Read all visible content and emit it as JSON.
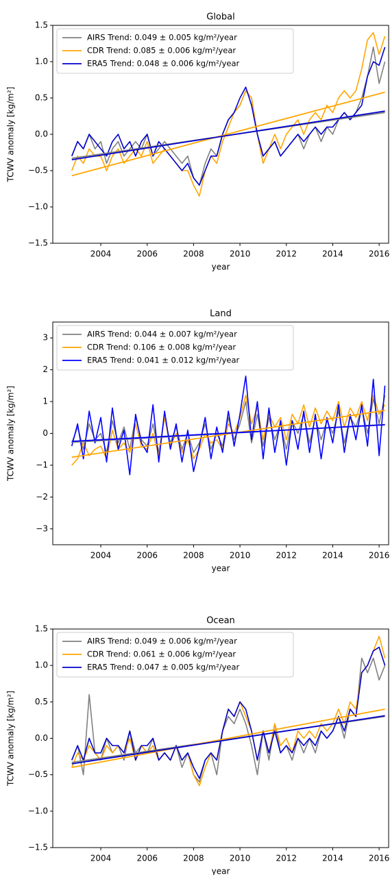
{
  "chart_data": [
    {
      "type": "line",
      "title": "Global",
      "x_label": "year",
      "y_label": "TCWV anomaly [kg/m²]",
      "legend": "upper left",
      "x": [
        2002.75,
        2003,
        2003.25,
        2003.5,
        2003.75,
        2004,
        2004.25,
        2004.5,
        2004.75,
        2005,
        2005.25,
        2005.5,
        2005.75,
        2006,
        2006.25,
        2006.5,
        2006.75,
        2007,
        2007.25,
        2007.5,
        2007.75,
        2008,
        2008.25,
        2008.5,
        2008.75,
        2009,
        2009.25,
        2009.5,
        2009.75,
        2010,
        2010.25,
        2010.5,
        2010.75,
        2011,
        2011.25,
        2011.5,
        2011.75,
        2012,
        2012.25,
        2012.5,
        2012.75,
        2013,
        2013.25,
        2013.5,
        2013.75,
        2014,
        2014.25,
        2014.5,
        2014.75,
        2015,
        2015.25,
        2015.5,
        2015.75,
        2016,
        2016.25
      ],
      "xlim": [
        2001.93,
        2016.41
      ],
      "xticks": [
        2004,
        2006,
        2008,
        2010,
        2012,
        2014,
        2016
      ],
      "ylim": [
        -1.5,
        1.5
      ],
      "yticks": [
        {
          "value": -1.5,
          "label": "−1.5"
        },
        {
          "value": -1.0,
          "label": "−1.0"
        },
        {
          "value": -0.5,
          "label": "−0.5"
        },
        {
          "value": 0,
          "label": "0.0"
        },
        0.5,
        {
          "value": 1.0,
          "label": "1.0"
        },
        1.5
      ],
      "series": [
        {
          "name": "AIRS Trend: 0.049 ± 0.005 kg/m²/year",
          "color": "#808080",
          "trend": [
            -0.33,
            0.3
          ],
          "values": [
            -0.3,
            -0.1,
            -0.2,
            0.0,
            -0.2,
            -0.1,
            -0.4,
            -0.2,
            -0.1,
            -0.3,
            -0.2,
            -0.1,
            -0.2,
            0.0,
            -0.3,
            -0.2,
            -0.1,
            -0.2,
            -0.3,
            -0.4,
            -0.3,
            -0.6,
            -0.7,
            -0.4,
            -0.2,
            -0.3,
            0.0,
            0.2,
            0.3,
            0.4,
            0.6,
            0.5,
            0.0,
            -0.3,
            -0.2,
            -0.1,
            -0.3,
            -0.2,
            -0.1,
            0.0,
            -0.2,
            0.0,
            0.1,
            -0.1,
            0.1,
            0.0,
            0.2,
            0.3,
            0.2,
            0.3,
            0.5,
            0.8,
            1.2,
            0.7,
            1.0
          ]
        },
        {
          "name": "CDR Trend: 0.085 ± 0.006 kg/m²/year",
          "color": "#ffa500",
          "trend": [
            -0.57,
            0.58
          ],
          "values": [
            -0.5,
            -0.3,
            -0.4,
            -0.2,
            -0.3,
            -0.3,
            -0.5,
            -0.3,
            -0.2,
            -0.4,
            -0.3,
            -0.2,
            -0.3,
            -0.1,
            -0.4,
            -0.3,
            -0.2,
            -0.3,
            -0.4,
            -0.5,
            -0.5,
            -0.7,
            -0.85,
            -0.5,
            -0.3,
            -0.4,
            -0.1,
            0.1,
            0.3,
            0.4,
            0.6,
            0.5,
            0.0,
            -0.4,
            -0.2,
            0.0,
            -0.2,
            0.0,
            0.1,
            0.2,
            0.0,
            0.2,
            0.3,
            0.2,
            0.4,
            0.3,
            0.5,
            0.6,
            0.5,
            0.6,
            0.9,
            1.3,
            1.4,
            1.1,
            1.35
          ]
        },
        {
          "name": "ERA5 Trend: 0.048 ± 0.006 kg/m²/year",
          "color": "#0000cd",
          "trend": [
            -0.35,
            0.32
          ],
          "values": [
            -0.3,
            -0.1,
            -0.2,
            0.0,
            -0.1,
            -0.2,
            -0.3,
            -0.1,
            0.0,
            -0.2,
            -0.1,
            -0.3,
            -0.1,
            0.0,
            -0.3,
            -0.1,
            -0.2,
            -0.3,
            -0.4,
            -0.5,
            -0.4,
            -0.6,
            -0.7,
            -0.5,
            -0.3,
            -0.3,
            0.0,
            0.2,
            0.3,
            0.5,
            0.65,
            0.4,
            0.0,
            -0.3,
            -0.2,
            -0.1,
            -0.3,
            -0.2,
            -0.1,
            0.0,
            -0.1,
            0.0,
            0.1,
            0.0,
            0.1,
            0.1,
            0.2,
            0.3,
            0.2,
            0.3,
            0.4,
            0.8,
            1.0,
            0.95,
            1.2
          ]
        }
      ]
    },
    {
      "type": "line",
      "title": "Land",
      "x_label": "year",
      "y_label": "TCWV anomaly [kg/m²]",
      "legend": "upper left",
      "x": [
        2002.75,
        2003,
        2003.25,
        2003.5,
        2003.75,
        2004,
        2004.25,
        2004.5,
        2004.75,
        2005,
        2005.25,
        2005.5,
        2005.75,
        2006,
        2006.25,
        2006.5,
        2006.75,
        2007,
        2007.25,
        2007.5,
        2007.75,
        2008,
        2008.25,
        2008.5,
        2008.75,
        2009,
        2009.25,
        2009.5,
        2009.75,
        2010,
        2010.25,
        2010.5,
        2010.75,
        2011,
        2011.25,
        2011.5,
        2011.75,
        2012,
        2012.25,
        2012.5,
        2012.75,
        2013,
        2013.25,
        2013.5,
        2013.75,
        2014,
        2014.25,
        2014.5,
        2014.75,
        2015,
        2015.25,
        2015.5,
        2015.75,
        2016,
        2016.25
      ],
      "xlim": [
        2001.93,
        2016.41
      ],
      "xticks": [
        2004,
        2006,
        2008,
        2010,
        2012,
        2014,
        2016
      ],
      "ylim": [
        -3.5,
        3.5
      ],
      "yticks": [
        {
          "value": -3,
          "label": "−3"
        },
        {
          "value": -2,
          "label": "−2"
        },
        {
          "value": -1,
          "label": "−1"
        },
        0,
        1,
        2,
        3
      ],
      "series": [
        {
          "name": "AIRS Trend: 0.044 ± 0.007 kg/m²/year",
          "color": "#808080",
          "trend": [
            -0.28,
            0.28
          ],
          "values": [
            -0.3,
            0.2,
            -0.5,
            0.3,
            -0.2,
            0.0,
            -0.6,
            0.4,
            -0.3,
            0.2,
            -0.5,
            0.5,
            -0.2,
            -0.4,
            0.3,
            -0.6,
            0.5,
            -0.3,
            0.2,
            -0.5,
            0.0,
            -0.6,
            -0.3,
            0.3,
            -0.5,
            0.0,
            -0.4,
            0.5,
            -0.2,
            0.3,
            1.0,
            -0.3,
            0.6,
            -0.4,
            0.5,
            -0.2,
            0.3,
            -0.5,
            0.4,
            0.0,
            0.6,
            -0.3,
            0.5,
            -0.2,
            0.4,
            0.0,
            0.7,
            -0.3,
            0.5,
            0.2,
            0.8,
            0.0,
            1.1,
            0.3,
            1.2
          ]
        },
        {
          "name": "CDR Trend: 0.106 ± 0.008 kg/m²/year",
          "color": "#ffa500",
          "trend": [
            -0.75,
            0.72
          ],
          "values": [
            -1.0,
            -0.8,
            -0.3,
            -0.7,
            -0.5,
            -0.4,
            -0.8,
            0.1,
            -0.5,
            -0.3,
            -0.6,
            0.3,
            -0.4,
            -0.5,
            0.0,
            -0.7,
            0.5,
            -0.4,
            0.0,
            -0.6,
            -0.2,
            -0.8,
            -0.5,
            0.0,
            -0.3,
            -0.2,
            -0.5,
            0.3,
            0.0,
            0.5,
            1.2,
            0.3,
            0.8,
            -0.2,
            0.6,
            0.2,
            0.5,
            -0.2,
            0.6,
            0.3,
            0.9,
            0.2,
            0.8,
            0.3,
            0.7,
            0.4,
            1.0,
            0.2,
            0.8,
            0.5,
            1.0,
            0.4,
            1.2,
            0.6,
            0.9
          ]
        },
        {
          "name": "ERA5 Trend: 0.041 ± 0.012 kg/m²/year",
          "color": "#0000ff",
          "trend": [
            -0.25,
            0.27
          ],
          "values": [
            -0.4,
            0.3,
            -0.8,
            0.7,
            -0.3,
            0.5,
            -0.9,
            0.8,
            -0.5,
            0.1,
            -1.3,
            0.6,
            -0.3,
            -0.6,
            0.9,
            -0.9,
            0.7,
            -0.5,
            0.3,
            -0.9,
            0.1,
            -1.2,
            -0.4,
            0.5,
            -0.8,
            0.2,
            -0.6,
            0.7,
            -0.4,
            0.6,
            1.8,
            -0.2,
            1.0,
            -0.8,
            0.8,
            -0.6,
            0.4,
            -1.0,
            0.4,
            -0.5,
            0.7,
            -0.6,
            0.6,
            -0.8,
            0.5,
            -0.3,
            0.9,
            -0.6,
            0.6,
            -0.2,
            0.9,
            -0.4,
            1.7,
            -0.7,
            1.5
          ]
        }
      ]
    },
    {
      "type": "line",
      "title": "Ocean",
      "x_label": "year",
      "y_label": "TCWV anomaly [kg/m²]",
      "legend": "upper left",
      "x": [
        2002.75,
        2003,
        2003.25,
        2003.5,
        2003.75,
        2004,
        2004.25,
        2004.5,
        2004.75,
        2005,
        2005.25,
        2005.5,
        2005.75,
        2006,
        2006.25,
        2006.5,
        2006.75,
        2007,
        2007.25,
        2007.5,
        2007.75,
        2008,
        2008.25,
        2008.5,
        2008.75,
        2009,
        2009.25,
        2009.5,
        2009.75,
        2010,
        2010.25,
        2010.5,
        2010.75,
        2011,
        2011.25,
        2011.5,
        2011.75,
        2012,
        2012.25,
        2012.5,
        2012.75,
        2013,
        2013.25,
        2013.5,
        2013.75,
        2014,
        2014.25,
        2014.5,
        2014.75,
        2015,
        2015.25,
        2015.5,
        2015.75,
        2016,
        2016.25
      ],
      "xlim": [
        2001.93,
        2016.41
      ],
      "xticks": [
        2004,
        2006,
        2008,
        2010,
        2012,
        2014,
        2016
      ],
      "ylim": [
        -1.5,
        1.5
      ],
      "yticks": [
        {
          "value": -1.5,
          "label": "−1.5"
        },
        {
          "value": -1.0,
          "label": "−1.0"
        },
        {
          "value": -0.5,
          "label": "−0.5"
        },
        {
          "value": 0,
          "label": "0.0"
        },
        0.5,
        {
          "value": 1.0,
          "label": "1.0"
        },
        1.5
      ],
      "series": [
        {
          "name": "AIRS Trend: 0.049 ± 0.006 kg/m²/year",
          "color": "#808080",
          "trend": [
            -0.33,
            0.3
          ],
          "values": [
            -0.3,
            -0.1,
            -0.5,
            0.6,
            -0.2,
            -0.3,
            0.0,
            -0.2,
            -0.1,
            -0.3,
            0.1,
            -0.2,
            -0.1,
            -0.2,
            0.0,
            -0.3,
            -0.2,
            -0.3,
            -0.1,
            -0.4,
            -0.2,
            -0.5,
            -0.6,
            -0.3,
            -0.2,
            -0.5,
            0.1,
            0.3,
            0.2,
            0.4,
            0.2,
            -0.1,
            -0.5,
            0.1,
            -0.3,
            0.2,
            -0.2,
            -0.1,
            -0.3,
            0.0,
            -0.2,
            0.0,
            -0.2,
            0.1,
            0.0,
            0.1,
            0.3,
            0.0,
            0.4,
            0.3,
            1.1,
            0.9,
            1.1,
            0.8,
            1.0
          ]
        },
        {
          "name": "CDR Trend: 0.061 ± 0.006 kg/m²/year",
          "color": "#ffa500",
          "trend": [
            -0.4,
            0.4
          ],
          "values": [
            -0.4,
            -0.2,
            -0.3,
            -0.1,
            -0.2,
            -0.3,
            -0.1,
            -0.2,
            -0.1,
            -0.2,
            0.0,
            -0.3,
            -0.1,
            -0.2,
            -0.1,
            -0.3,
            -0.2,
            -0.3,
            -0.1,
            -0.3,
            -0.2,
            -0.5,
            -0.65,
            -0.4,
            -0.2,
            -0.3,
            0.1,
            0.4,
            0.3,
            0.5,
            0.3,
            0.1,
            -0.3,
            0.1,
            -0.2,
            0.2,
            -0.1,
            0.0,
            -0.2,
            0.1,
            0.0,
            0.1,
            0.0,
            0.2,
            0.1,
            0.2,
            0.4,
            0.2,
            0.5,
            0.4,
            0.9,
            1.0,
            1.2,
            1.4,
            1.1
          ]
        },
        {
          "name": "ERA5 Trend: 0.047 ± 0.005 kg/m²/year",
          "color": "#0000cd",
          "trend": [
            -0.35,
            0.31
          ],
          "values": [
            -0.3,
            -0.1,
            -0.3,
            0.0,
            -0.2,
            -0.2,
            0.0,
            -0.1,
            -0.1,
            -0.2,
            0.1,
            -0.3,
            -0.1,
            -0.1,
            0.0,
            -0.3,
            -0.2,
            -0.3,
            -0.1,
            -0.3,
            -0.2,
            -0.4,
            -0.55,
            -0.3,
            -0.2,
            -0.3,
            0.1,
            0.4,
            0.3,
            0.5,
            0.4,
            0.1,
            -0.3,
            0.1,
            -0.2,
            0.1,
            -0.2,
            -0.1,
            -0.2,
            0.0,
            -0.1,
            0.0,
            -0.1,
            0.1,
            0.0,
            0.1,
            0.3,
            0.1,
            0.4,
            0.3,
            0.9,
            1.0,
            1.2,
            1.25,
            1.0
          ]
        }
      ]
    }
  ]
}
